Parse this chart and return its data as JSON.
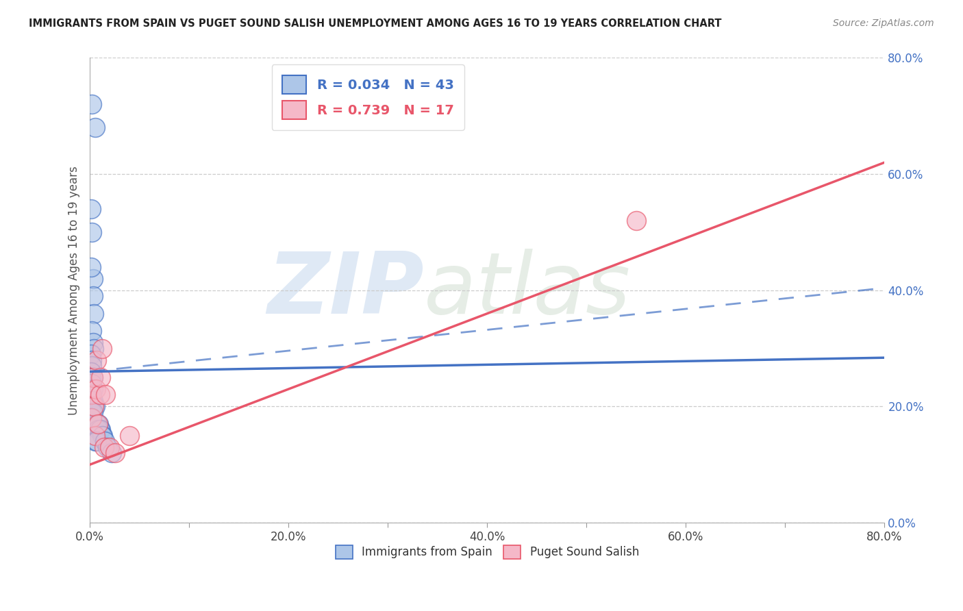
{
  "title": "IMMIGRANTS FROM SPAIN VS PUGET SOUND SALISH UNEMPLOYMENT AMONG AGES 16 TO 19 YEARS CORRELATION CHART",
  "source": "Source: ZipAtlas.com",
  "ylabel": "Unemployment Among Ages 16 to 19 years",
  "xlim": [
    0.0,
    0.8
  ],
  "ylim": [
    0.0,
    0.8
  ],
  "xticks": [
    0.0,
    0.1,
    0.2,
    0.3,
    0.4,
    0.5,
    0.6,
    0.7,
    0.8
  ],
  "yticks": [
    0.0,
    0.2,
    0.4,
    0.6,
    0.8
  ],
  "xtick_labels": [
    "0.0%",
    "",
    "20.0%",
    "",
    "40.0%",
    "",
    "60.0%",
    "",
    "80.0%"
  ],
  "ytick_labels": [
    "0.0%",
    "20.0%",
    "40.0%",
    "60.0%",
    "80.0%"
  ],
  "blue_scatter_x": [
    0.002,
    0.005,
    0.001,
    0.002,
    0.003,
    0.001,
    0.003,
    0.004,
    0.002,
    0.003,
    0.004,
    0.001,
    0.002,
    0.002,
    0.001,
    0.001,
    0.003,
    0.002,
    0.003,
    0.002,
    0.001,
    0.002,
    0.003,
    0.001,
    0.004,
    0.005,
    0.002,
    0.003,
    0.001,
    0.001,
    0.004,
    0.007,
    0.009,
    0.011,
    0.008,
    0.01,
    0.013,
    0.012,
    0.005,
    0.007,
    0.015,
    0.018,
    0.022
  ],
  "blue_scatter_y": [
    0.72,
    0.68,
    0.54,
    0.5,
    0.42,
    0.44,
    0.39,
    0.36,
    0.33,
    0.31,
    0.3,
    0.29,
    0.28,
    0.27,
    0.26,
    0.25,
    0.25,
    0.24,
    0.23,
    0.22,
    0.22,
    0.21,
    0.21,
    0.2,
    0.2,
    0.2,
    0.19,
    0.19,
    0.18,
    0.18,
    0.17,
    0.17,
    0.17,
    0.16,
    0.16,
    0.16,
    0.15,
    0.15,
    0.14,
    0.14,
    0.14,
    0.13,
    0.12
  ],
  "pink_scatter_x": [
    0.001,
    0.002,
    0.003,
    0.004,
    0.005,
    0.006,
    0.007,
    0.008,
    0.01,
    0.011,
    0.012,
    0.014,
    0.016,
    0.02,
    0.025,
    0.55,
    0.04
  ],
  "pink_scatter_y": [
    0.22,
    0.18,
    0.25,
    0.2,
    0.15,
    0.23,
    0.28,
    0.17,
    0.22,
    0.25,
    0.3,
    0.13,
    0.22,
    0.13,
    0.12,
    0.52,
    0.15
  ],
  "blue_color": "#adc6e8",
  "pink_color": "#f5b8c8",
  "blue_line_color": "#4472c4",
  "pink_line_color": "#e8566a",
  "blue_solid_line": {
    "intercept": 0.26,
    "slope": 0.03
  },
  "blue_dashed_line": {
    "intercept": 0.26,
    "slope": 0.18
  },
  "pink_solid_line": {
    "intercept": 0.1,
    "slope": 0.65
  },
  "legend_blue_label": "R = 0.034   N = 43",
  "legend_pink_label": "R = 0.739   N = 17",
  "legend_bottom_blue": "Immigrants from Spain",
  "legend_bottom_pink": "Puget Sound Salish",
  "watermark_zip": "ZIP",
  "watermark_atlas": "atlas",
  "background_color": "#ffffff",
  "grid_color": "#cccccc"
}
